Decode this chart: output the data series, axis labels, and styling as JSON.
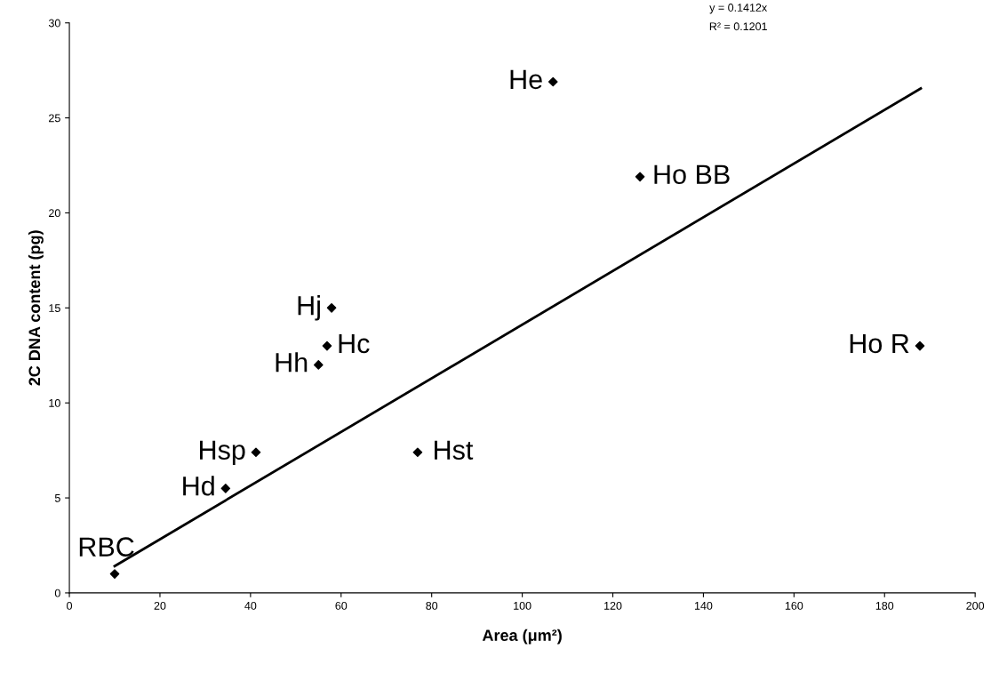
{
  "chart_data": {
    "type": "scatter",
    "xlabel": "Area (μm²)",
    "ylabel": "2C DNA content (pg)",
    "xlim": [
      0,
      200
    ],
    "xticks": [
      0,
      20,
      40,
      60,
      80,
      100,
      120,
      140,
      160,
      180,
      200
    ],
    "ylim": [
      0,
      30
    ],
    "yticks": [
      0,
      5,
      10,
      15,
      20,
      25,
      30
    ],
    "grid": false,
    "marker": "diamond",
    "series": [
      {
        "color": "#000000",
        "x": [
          10.0,
          34.5,
          41.2,
          55.0,
          56.9,
          57.9,
          76.9,
          106.8,
          126.0,
          187.8
        ],
        "values": [
          1.0,
          5.5,
          7.4,
          12.0,
          13.0,
          15.0,
          7.4,
          26.9,
          21.9,
          13.0
        ]
      },
      {
        "type": "line",
        "color": "#000000",
        "marker": "none",
        "line_style": "solid",
        "x": [
          10,
          188
        ],
        "values": [
          1.41,
          26.55
        ]
      }
    ],
    "annotations": [
      {
        "text": "RBC",
        "x": 10.0,
        "y": 1.0
      },
      {
        "text": "Hd",
        "x": 34.5,
        "y": 5.5
      },
      {
        "text": "Hsp",
        "x": 41.2,
        "y": 7.4
      },
      {
        "text": "Hh",
        "x": 55.0,
        "y": 12.0
      },
      {
        "text": "Hc",
        "x": 56.9,
        "y": 13.0
      },
      {
        "text": "Hj",
        "x": 57.9,
        "y": 15.0
      },
      {
        "text": "Hst",
        "x": 76.9,
        "y": 7.4
      },
      {
        "text": "He",
        "x": 106.8,
        "y": 26.9
      },
      {
        "text": "Ho BB",
        "x": 126.0,
        "y": 21.9
      },
      {
        "text": "Ho R",
        "x": 187.8,
        "y": 13.0
      },
      "y = 0.1412x",
      "R² = 0.1201"
    ]
  }
}
